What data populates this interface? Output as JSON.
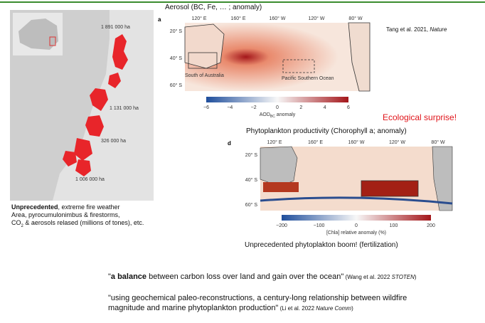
{
  "fire_map": {
    "area_labels": [
      "1 891 000 ha",
      "1 131 000 ha",
      "326 000 ha",
      "1 006 000 ha"
    ]
  },
  "fire_caption": {
    "bold": "Unprecedented",
    "line1": ", extreme fire weather",
    "line2": "Area, pyrocumulonimbus & firestorms,",
    "line3_a": "CO",
    "line3_sub": "2",
    "line3_b": " & aerosols relased (millions of tones), etc."
  },
  "aerosol_panel": {
    "title": "Aerosol (BC, Fe, … ; anomaly)",
    "letter": "a",
    "lon_labels": [
      "120° E",
      "160° E",
      "160° W",
      "120° W",
      "80° W"
    ],
    "lat_labels": [
      "20° S",
      "40° S",
      "60° S"
    ],
    "regions": [
      "South of Australia",
      "Pacific Southern Ocean"
    ],
    "colorbar_ticks": [
      "−6",
      "−4",
      "−2",
      "0",
      "2",
      "4",
      "6"
    ],
    "colorbar_label": "AOD",
    "colorbar_label_sub": "BC",
    "colorbar_label_end": " anomaly"
  },
  "citation": {
    "text": "Tang et al. 2021, ",
    "journal": "Nature"
  },
  "surprise": "Ecological surprise!",
  "phyto_panel": {
    "title": "Phytoplankton productivity (Chorophyll a; anomaly)",
    "letter": "d",
    "lon_labels": [
      "120° E",
      "160° E",
      "160° W",
      "120° W",
      "80° W"
    ],
    "lat_labels": [
      "20° S",
      "40° S",
      "60° S"
    ],
    "colorbar_ticks": [
      "−200",
      "−100",
      "0",
      "100",
      "200"
    ],
    "colorbar_label": "[Chla] relative anomaly (%)",
    "caption": "Unprecedented phytoplakton boom! (fertilization)"
  },
  "quotes": [
    {
      "open": "\"",
      "bold": "a balance",
      "text": " between carbon loss over land and gain over the ocean\"",
      "ref": " (Wang et al. 2022 ",
      "journal": "STOTEN",
      "close": ")"
    },
    {
      "text": "\"using geochemical paleo-reconstructions, a century-long relationship between wildfire magnitude and marine phytoplankton production\"",
      "ref": " (Li et al. 2022 ",
      "journal": "Nature Comm",
      "close": ")"
    }
  ]
}
